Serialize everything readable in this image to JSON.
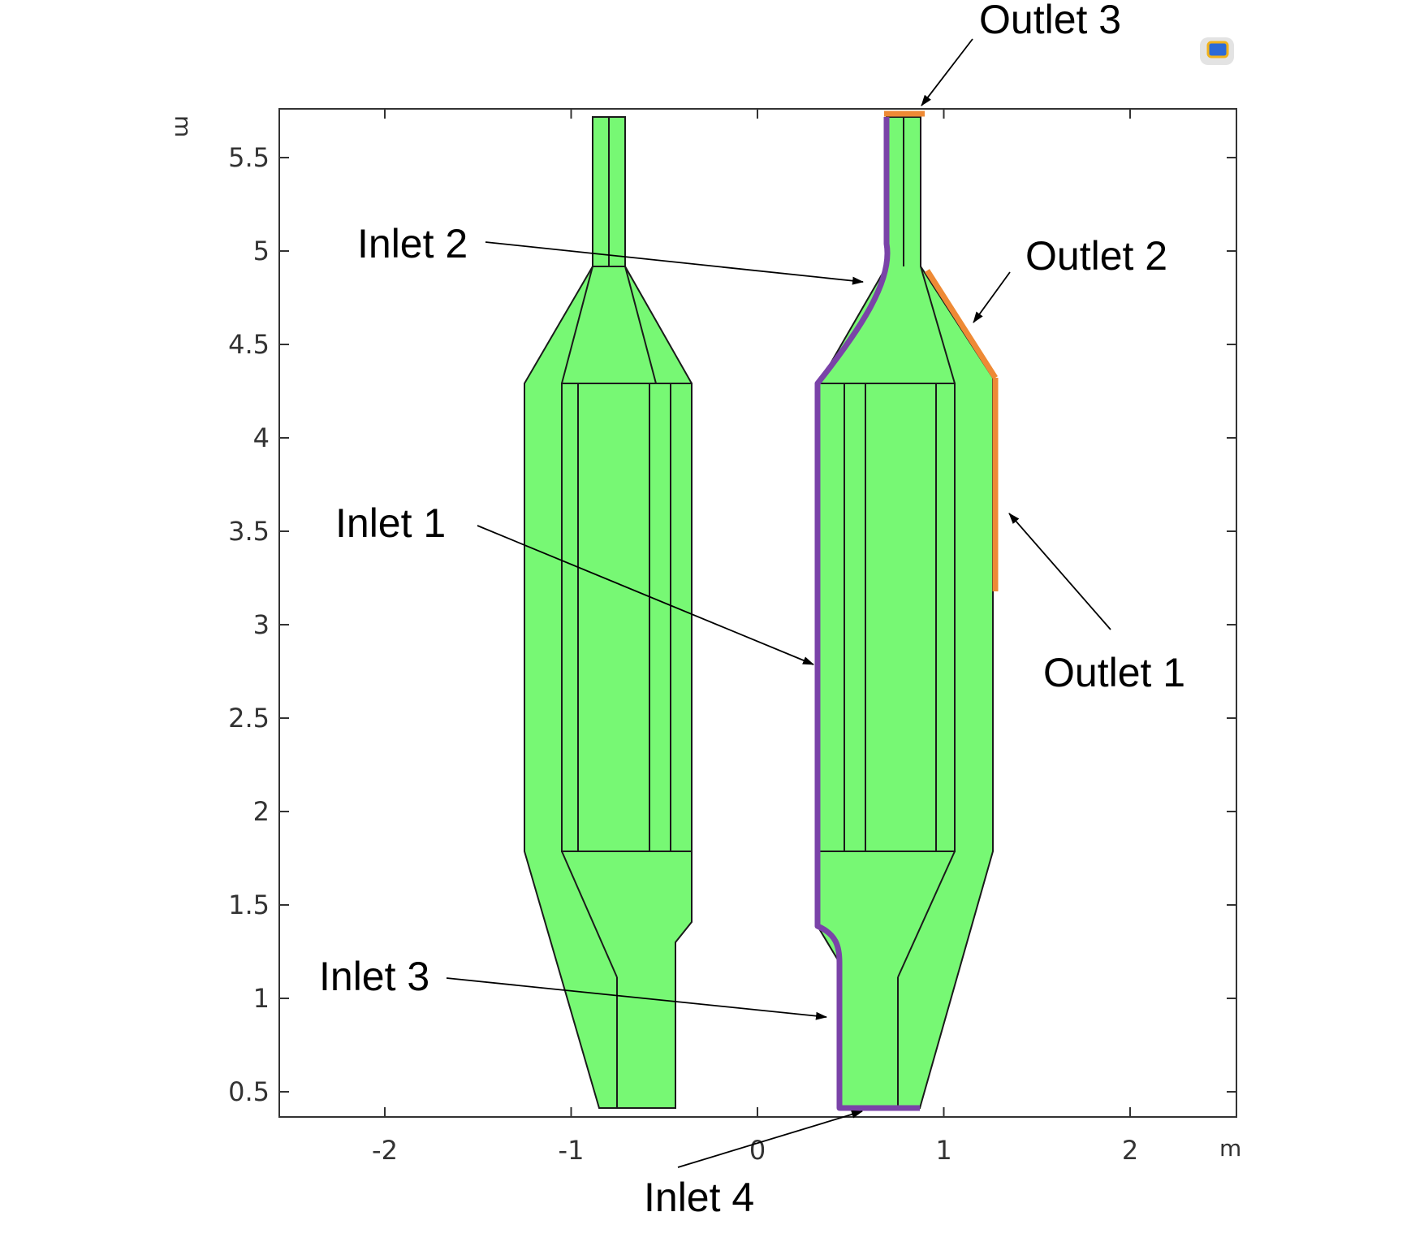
{
  "axes": {
    "x_unit": "m",
    "y_unit": "m",
    "x_ticks": [
      "-2",
      "-1",
      "0",
      "1",
      "2"
    ],
    "y_ticks": [
      "0.5",
      "1",
      "1.5",
      "2",
      "2.5",
      "3",
      "3.5",
      "4",
      "4.5",
      "5",
      "5.5"
    ]
  },
  "labels": {
    "outlet3": "Outlet 3",
    "outlet2": "Outlet 2",
    "outlet1": "Outlet 1",
    "inlet1": "Inlet 1",
    "inlet2": "Inlet 2",
    "inlet3": "Inlet 3",
    "inlet4": "Inlet 4"
  },
  "colors": {
    "fill": "#77f874",
    "inlet": "#7a43a8",
    "outlet": "#ee8a35"
  }
}
